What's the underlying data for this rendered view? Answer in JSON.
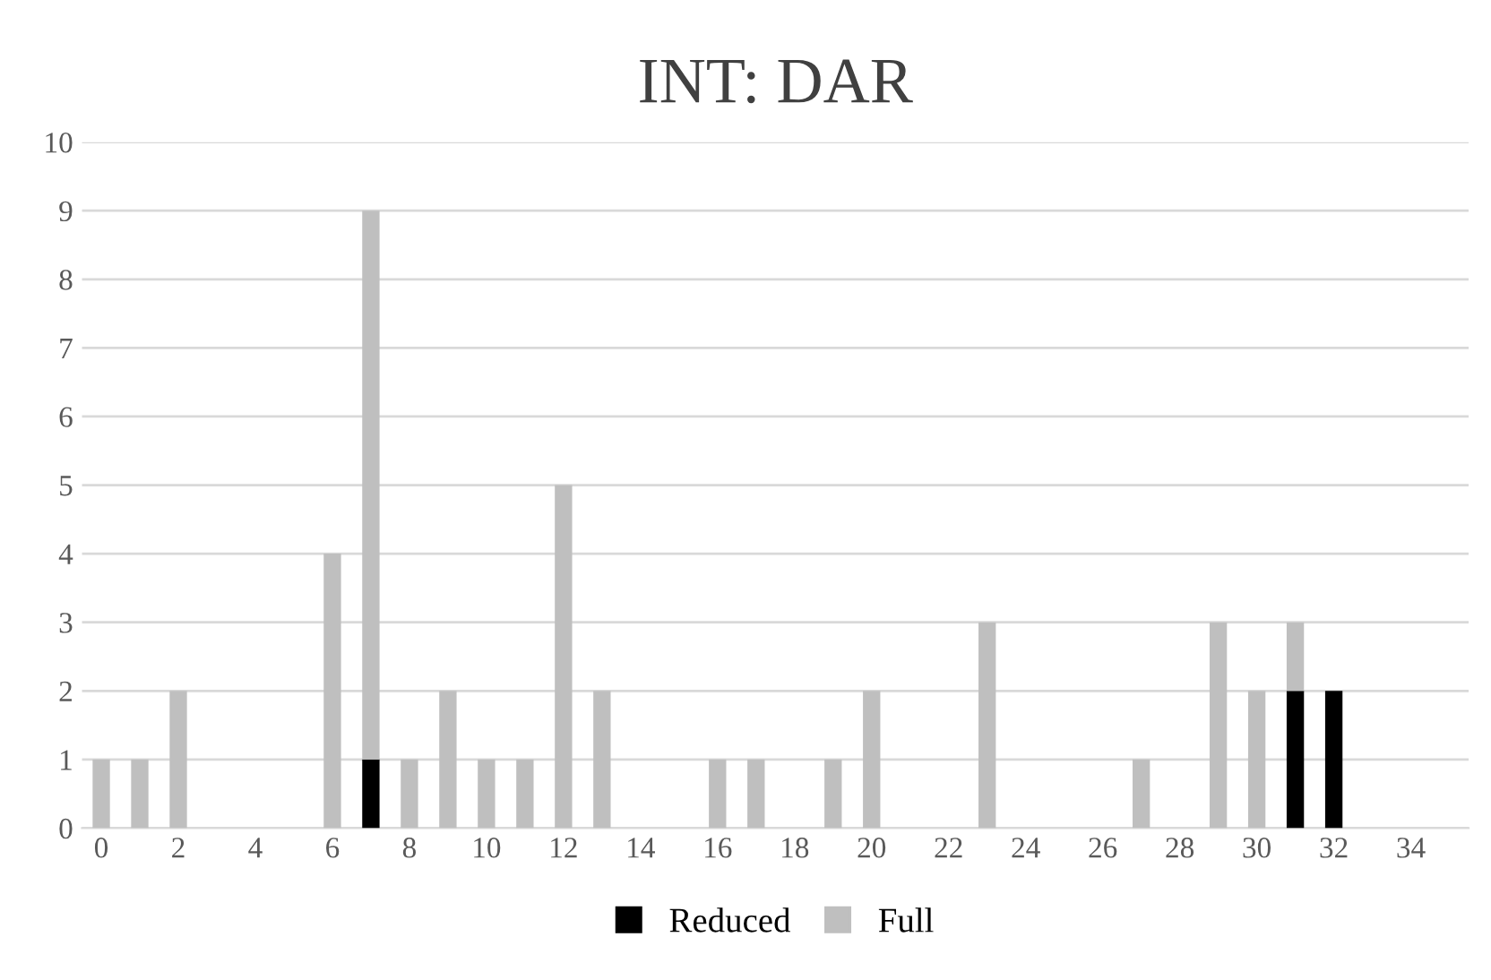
{
  "chart_data": {
    "type": "bar",
    "title": "INT: DAR",
    "stacked": true,
    "x": [
      0,
      1,
      2,
      3,
      4,
      5,
      6,
      7,
      8,
      9,
      10,
      11,
      12,
      13,
      14,
      15,
      16,
      17,
      18,
      19,
      20,
      21,
      22,
      23,
      24,
      25,
      26,
      27,
      28,
      29,
      30,
      31,
      32,
      33,
      34,
      35
    ],
    "series": [
      {
        "name": "Reduced",
        "color": "#000000",
        "values": [
          0,
          0,
          0,
          0,
          0,
          0,
          0,
          1,
          0,
          0,
          0,
          0,
          0,
          0,
          0,
          0,
          0,
          0,
          0,
          0,
          0,
          0,
          0,
          0,
          0,
          0,
          0,
          0,
          0,
          0,
          0,
          2,
          2,
          0,
          0,
          0
        ]
      },
      {
        "name": "Full",
        "color": "#bfbfbf",
        "values": [
          1,
          1,
          2,
          0,
          0,
          0,
          4,
          8,
          1,
          2,
          1,
          1,
          5,
          2,
          0,
          0,
          1,
          1,
          0,
          1,
          2,
          0,
          0,
          3,
          0,
          0,
          0,
          1,
          0,
          3,
          2,
          1,
          0,
          0,
          0,
          0
        ]
      }
    ],
    "xlim": [
      -0.5,
      35.5
    ],
    "xticks": [
      0,
      2,
      4,
      6,
      8,
      10,
      12,
      14,
      16,
      18,
      20,
      22,
      24,
      26,
      28,
      30,
      32,
      34
    ],
    "ylim": [
      0,
      10
    ],
    "yticks": [
      0,
      1,
      2,
      3,
      4,
      5,
      6,
      7,
      8,
      9,
      10
    ],
    "grid": "y",
    "legend": "bottom"
  }
}
